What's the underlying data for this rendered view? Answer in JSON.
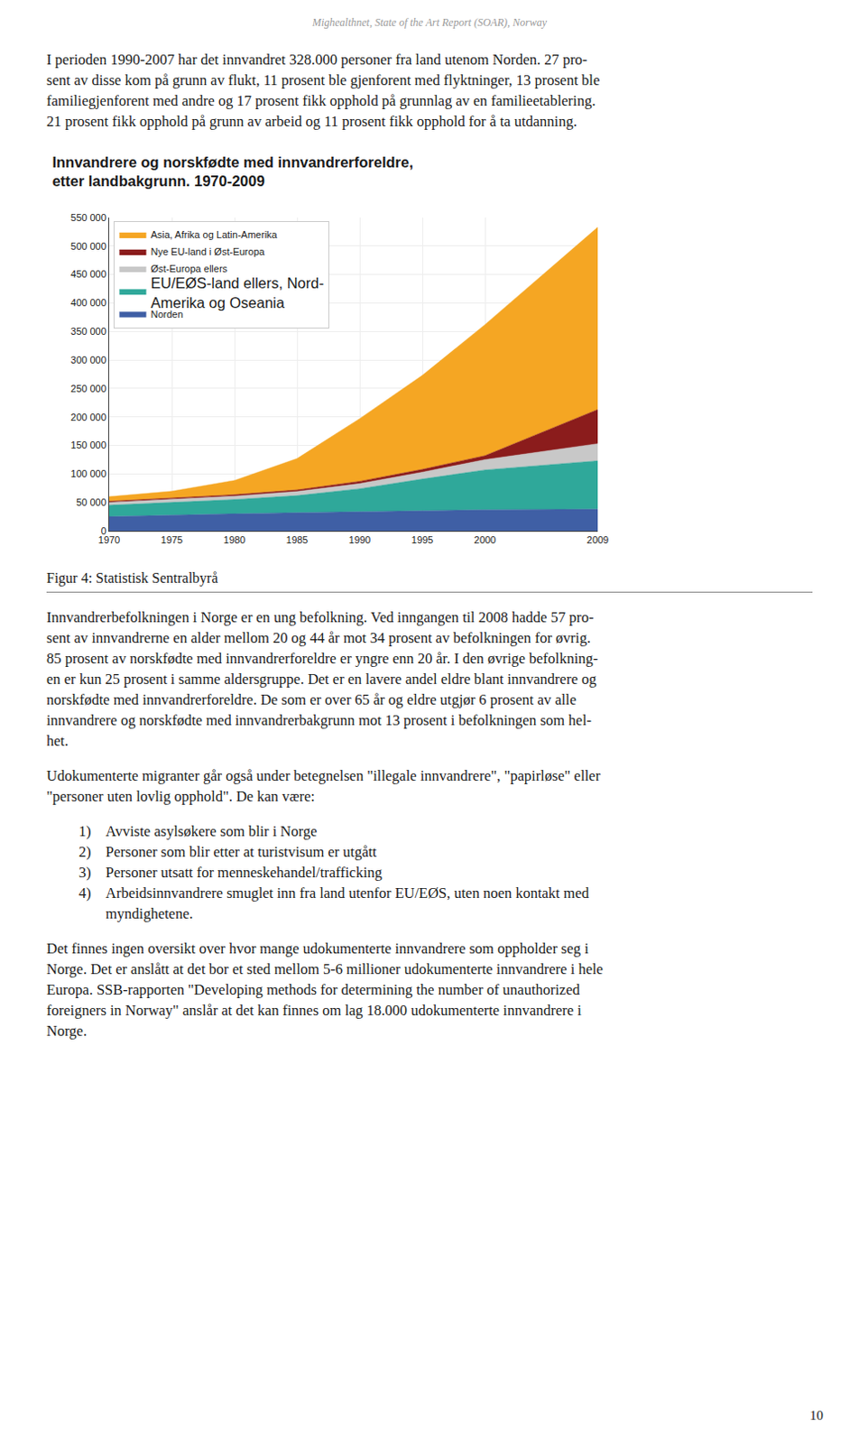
{
  "chart_data": {
    "type": "area",
    "stacked": true,
    "title": "Innvandrere og norskfødte med innvandrerforeldre,\netter landbakgrunn. 1970-2009",
    "x": [
      1970,
      1975,
      1980,
      1985,
      1990,
      1995,
      2000,
      2009
    ],
    "xlim": [
      1970,
      2009
    ],
    "xticks": [
      1970,
      1975,
      1980,
      1985,
      1990,
      1995,
      2000,
      2009
    ],
    "ylim": [
      0,
      550000
    ],
    "yticks": [
      0,
      {
        "value": 50000,
        "label": "50 000"
      },
      {
        "value": 100000,
        "label": "100 000"
      },
      {
        "value": 150000,
        "label": "150 000"
      },
      {
        "value": 200000,
        "label": "200 000"
      },
      {
        "value": 250000,
        "label": "250 000"
      },
      {
        "value": 300000,
        "label": "300 000"
      },
      {
        "value": 350000,
        "label": "350 000"
      },
      {
        "value": 400000,
        "label": "400 000"
      },
      {
        "value": 450000,
        "label": "450 000"
      },
      {
        "value": 500000,
        "label": "500 000"
      },
      {
        "value": 550000,
        "label": "550 000"
      }
    ],
    "grid": true,
    "legend": "upper left",
    "series": [
      {
        "name": "Norden",
        "color": "#3f5fa5",
        "values": [
          25000,
          28000,
          30000,
          32000,
          34000,
          36000,
          37000,
          38000
        ]
      },
      {
        "name": "EU/EØS-land ellers, Nord-\nAmerika og Oseania",
        "color": "#2fa89a",
        "values": [
          20000,
          22000,
          25000,
          30000,
          40000,
          55000,
          70000,
          85000
        ]
      },
      {
        "name": "Øst-Europa ellers",
        "color": "#c8c8c8",
        "values": [
          5000,
          5500,
          6000,
          7000,
          9000,
          12000,
          18000,
          30000
        ]
      },
      {
        "name": "Nye EU-land i Øst-Europa",
        "color": "#8b1c1c",
        "values": [
          2000,
          2000,
          2500,
          3000,
          4000,
          5000,
          7000,
          60000
        ]
      },
      {
        "name": "Asia, Afrika og Latin-Amerika",
        "color": "#f5a623",
        "values": [
          8000,
          12000,
          25000,
          55000,
          110000,
          165000,
          230000,
          320000
        ]
      }
    ],
    "annotations": {
      "header": "Mighealthnet, State of the Art Report (SOAR), Norway",
      "above": [
        [
          "I perioden 1990-2007 har det innvandret 328.000 personer fra land utenom Norden. 27 pro-",
          "sent av disse kom på grunn av flukt, 11 prosent ble gjenforent med flyktninger, 13 prosent ble",
          "familiegjenforent med andre og 17 prosent fikk opphold på grunnlag av en familieetablering.",
          "21 prosent fikk opphold på grunn av arbeid og 11 prosent fikk opphold for å ta utdanning."
        ]
      ],
      "caption": "Figur 4: Statistisk Sentralbyrå",
      "below": [
        [
          "Innvandrerbefolkningen i Norge er en ung befolkning. Ved inngangen til 2008 hadde 57 pro-",
          "sent av innvandrerne en alder mellom 20 og 44 år mot 34 prosent av befolkningen for øvrig.",
          "85 prosent av norskfødte med innvandrerforeldre er yngre enn 20 år. I den øvrige befolkning-",
          "en er kun 25 prosent i samme aldersgruppe. Det er en lavere andel eldre blant innvandrere og",
          "norskfødte med innvandrerforeldre. De som er over 65 år og eldre utgjør 6 prosent av alle",
          "innvandrere og norskfødte med innvandrerbakgrunn mot 13 prosent i befolkningen som hel-",
          "het."
        ],
        [
          "Udokumenterte migranter går også under betegnelsen \"illegale innvandrere\", \"papirløse\" eller",
          "\"personer uten lovlig opphold\". De kan være:"
        ]
      ],
      "list": [
        {
          "number": "1)",
          "text": "Avviste asylsøkere som blir i Norge"
        },
        {
          "number": "2)",
          "text": "Personer som blir etter at turistvisum er utgått"
        },
        {
          "number": "3)",
          "text": "Personer utsatt for menneskehandel/trafficking"
        },
        {
          "number": "4)",
          "text": "Arbeidsinnvandrere smuglet inn fra land utenfor EU/EØS, uten noen kontakt med\nmyndighetene."
        }
      ],
      "after_list": [
        [
          "Det finnes ingen oversikt over hvor mange udokumenterte innvandrere som oppholder seg i",
          "Norge. Det er anslått at det bor et sted mellom 5-6 millioner udokumenterte innvandrere i hele",
          "Europa.  SSB-rapporten \"Developing methods for determining the number of unauthorized",
          "foreigners in Norway\" anslår at det kan finnes om lag 18.000 udokumenterte innvandrere i",
          "Norge."
        ]
      ],
      "page_number": "10"
    }
  }
}
